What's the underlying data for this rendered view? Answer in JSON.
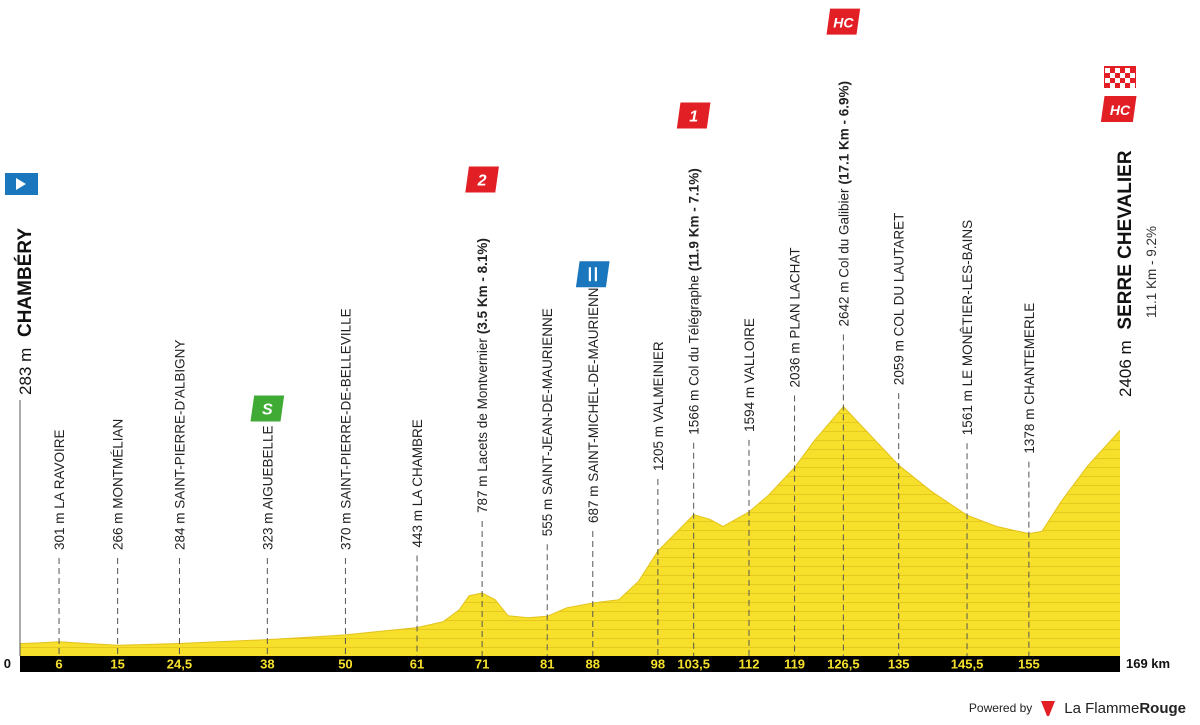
{
  "chart_data": {
    "type": "area",
    "x_unit": "km",
    "y_unit": "m",
    "total_distance_label": "169 km",
    "zero_label": "0",
    "ylim": [
      0,
      2800
    ],
    "profile": [
      [
        0,
        283
      ],
      [
        3,
        290
      ],
      [
        6,
        301
      ],
      [
        10,
        285
      ],
      [
        15,
        266
      ],
      [
        20,
        275
      ],
      [
        24.5,
        284
      ],
      [
        30,
        300
      ],
      [
        38,
        323
      ],
      [
        44,
        345
      ],
      [
        50,
        370
      ],
      [
        56,
        410
      ],
      [
        61,
        443
      ],
      [
        65,
        500
      ],
      [
        67.5,
        620
      ],
      [
        69,
        760
      ],
      [
        71,
        787
      ],
      [
        73,
        720
      ],
      [
        75,
        560
      ],
      [
        78,
        540
      ],
      [
        81,
        555
      ],
      [
        84,
        640
      ],
      [
        88,
        687
      ],
      [
        92,
        720
      ],
      [
        95,
        900
      ],
      [
        98,
        1205
      ],
      [
        101,
        1400
      ],
      [
        103.5,
        1566
      ],
      [
        106,
        1520
      ],
      [
        108,
        1450
      ],
      [
        112,
        1594
      ],
      [
        115,
        1760
      ],
      [
        119,
        2036
      ],
      [
        122,
        2300
      ],
      [
        126.5,
        2642
      ],
      [
        130,
        2400
      ],
      [
        135,
        2059
      ],
      [
        140,
        1800
      ],
      [
        145.5,
        1561
      ],
      [
        150,
        1450
      ],
      [
        155,
        1378
      ],
      [
        157,
        1400
      ],
      [
        160,
        1700
      ],
      [
        164,
        2050
      ],
      [
        169,
        2406
      ]
    ],
    "km_ticks": [
      "6",
      "15",
      "24,5",
      "38",
      "50",
      "61",
      "71",
      "81",
      "88",
      "98",
      "103,5",
      "112",
      "119",
      "126,5",
      "135",
      "145,5",
      "155"
    ],
    "km_tick_values": [
      6,
      15,
      24.5,
      38,
      50,
      61,
      71,
      81,
      88,
      98,
      103.5,
      112,
      119,
      126.5,
      135,
      145.5,
      155
    ],
    "start": {
      "name": "CHAMBÉRY",
      "altitude": "283 m",
      "km": 0
    },
    "finish": {
      "name": "SERRE CHEVALIER",
      "altitude": "2406 m",
      "detail": "11.1 Km - 9.2%",
      "km": 169
    },
    "waypoints": [
      {
        "km": 6,
        "alt": 301,
        "label": "301 m LA RAVOIRE"
      },
      {
        "km": 15,
        "alt": 266,
        "label": "266 m MONTMÉLIAN"
      },
      {
        "km": 24.5,
        "alt": 284,
        "label": "284 m SAINT-PIERRE-D'ALBIGNY"
      },
      {
        "km": 38,
        "alt": 323,
        "label": "323 m AIGUEBELLE",
        "badge": "sprint"
      },
      {
        "km": 50,
        "alt": 370,
        "label": "370 m SAINT-PIERRE-DE-BELLEVILLE"
      },
      {
        "km": 61,
        "alt": 443,
        "label": "443 m LA CHAMBRE"
      },
      {
        "km": 71,
        "alt": 787,
        "label": "787 m Lacets de Montvernier",
        "detail": "(3.5 Km - 8.1%)",
        "badge": "cat2"
      },
      {
        "km": 81,
        "alt": 555,
        "label": "555 m SAINT-JEAN-DE-MAURIENNE"
      },
      {
        "km": 88,
        "alt": 687,
        "label": "687 m SAINT-MICHEL-DE-MAURIENNE",
        "badge": "feed"
      },
      {
        "km": 98,
        "alt": 1205,
        "label": "1205 m VALMEINIER"
      },
      {
        "km": 103.5,
        "alt": 1566,
        "label": "1566 m Col du Télégraphe",
        "detail": "(11.9 Km - 7.1%)",
        "badge": "cat1"
      },
      {
        "km": 112,
        "alt": 1594,
        "label": "1594 m VALLOIRE"
      },
      {
        "km": 119,
        "alt": 2036,
        "label": "2036 m PLAN LACHAT"
      },
      {
        "km": 126.5,
        "alt": 2642,
        "label": "2642 m Col du Galibier",
        "detail": "(17.1 Km - 6.9%)",
        "badge": "hc"
      },
      {
        "km": 135,
        "alt": 2059,
        "label": "2059 m COL DU LAUTARET"
      },
      {
        "km": 145.5,
        "alt": 1561,
        "label": "1561 m LE MONÊTIER-LES-BAINS"
      },
      {
        "km": 155,
        "alt": 1378,
        "label": "1378 m CHANTEMERLE"
      }
    ],
    "badges": {
      "sprint": "S",
      "cat2": "2",
      "cat1": "1",
      "hc": "HC",
      "feed": "feed-zone-icon",
      "start": "start-flag-icon",
      "finish": "finish-flag-icon"
    },
    "colors": {
      "fill": "#f6e02b",
      "fill_stripe": "#e3c21b",
      "axis_bar": "#000000",
      "axis_text": "#f6e02b",
      "start_badge": "#1a77be",
      "feed_badge": "#1a77be",
      "climb_badge": "#e31f26",
      "sprint_badge": "#3fab35",
      "leader_line": "#555555"
    }
  },
  "footer": {
    "powered_by": "Powered by",
    "brand_prefix": "La Flamme",
    "brand_suffix": "Rouge",
    "logo_icon": "flamme-rouge-logo-icon"
  }
}
